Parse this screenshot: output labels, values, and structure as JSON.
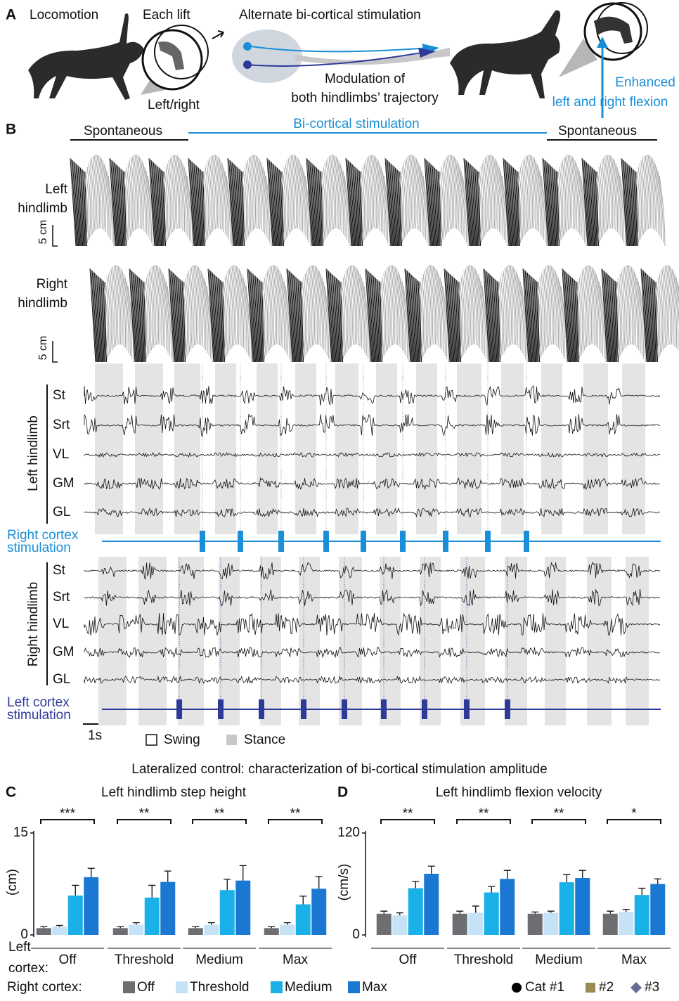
{
  "panel_a": {
    "label": "A",
    "locomotion": "Locomotion",
    "each_lift": "Each lift",
    "left_right": "Left/right",
    "alt_stim": "Alternate bi-cortical stimulation",
    "modulation": [
      "Modulation of",
      "both hindlimbs’ trajectory"
    ],
    "enhanced": [
      "Enhanced",
      "left and right flexion"
    ]
  },
  "panel_b": {
    "label": "B",
    "spontaneous": [
      "Spontaneous",
      "Spontaneous"
    ],
    "stimulation": "Bi-cortical stimulation",
    "left_hindlimb": [
      "Left",
      "hindlimb"
    ],
    "right_hindlimb": [
      "Right",
      "hindlimb"
    ],
    "scale": [
      "5 cm",
      "5 cm"
    ],
    "emg_left_title": "Left hindlimb",
    "emg_right_title": "Right hindlimb",
    "muscles_left": [
      "St",
      "Srt",
      "VL",
      "GM",
      "GL"
    ],
    "muscles_right": [
      "St",
      "Srt",
      "VL",
      "GM",
      "GL"
    ],
    "right_stim": [
      "Right cortex",
      "stimulation"
    ],
    "left_stim": [
      "Left cortex",
      "stimulation"
    ],
    "time_scale": "1s",
    "legend": [
      "Swing",
      "Stance"
    ]
  },
  "section_title": "Lateralized control: characterization of bi-cortical stimulation amplitude",
  "left_cortex_label": [
    "Left",
    "cortex:"
  ],
  "right_cortex_label": "Right cortex:",
  "animal_legend": [
    {
      "name": "Cat #1",
      "color": "#000000",
      "marker": "circle"
    },
    {
      "name": "#2",
      "color": "#9c8a55",
      "marker": "square"
    },
    {
      "name": "#3",
      "color": "#6a6a96",
      "marker": "diamond"
    }
  ],
  "chart_data": [
    {
      "type": "bar",
      "label": "C",
      "title": "Left hindlimb step height",
      "ylabel": "(cm)",
      "categories": [
        "Off",
        "Threshold",
        "Medium",
        "Max"
      ],
      "series": [
        {
          "name": "Off",
          "color": "#6d6e71",
          "values": [
            1.0,
            1.0,
            1.0,
            1.0
          ],
          "errors": [
            0.2,
            0.2,
            0.2,
            0.2
          ]
        },
        {
          "name": "Threshold",
          "color": "#c6e2f7",
          "values": [
            1.2,
            1.5,
            1.5,
            1.5
          ],
          "errors": [
            0.2,
            0.3,
            0.3,
            0.3
          ]
        },
        {
          "name": "Medium",
          "color": "#1ab0e8",
          "values": [
            5.8,
            5.5,
            6.6,
            4.5
          ],
          "errors": [
            1.5,
            1.8,
            1.6,
            1.2
          ]
        },
        {
          "name": "Max",
          "color": "#1a78d2",
          "values": [
            8.5,
            7.8,
            8.0,
            6.8
          ],
          "errors": [
            1.3,
            1.6,
            2.2,
            1.8
          ]
        }
      ],
      "ylim": [
        0,
        15
      ],
      "yticks": [
        0,
        15
      ],
      "significance": [
        "***",
        "**",
        "**",
        "**"
      ]
    },
    {
      "type": "bar",
      "label": "D",
      "title": "Left hindlimb flexion velocity",
      "ylabel": "(cm/s)",
      "categories": [
        "Off",
        "Threshold",
        "Medium",
        "Max"
      ],
      "series": [
        {
          "name": "Off",
          "color": "#6d6e71",
          "values": [
            25,
            25,
            25,
            25
          ],
          "errors": [
            3,
            3,
            2,
            3
          ]
        },
        {
          "name": "Threshold",
          "color": "#c6e2f7",
          "values": [
            23,
            26,
            26,
            27
          ],
          "errors": [
            3,
            8,
            2,
            3
          ]
        },
        {
          "name": "Medium",
          "color": "#1ab0e8",
          "values": [
            55,
            50,
            62,
            47
          ],
          "errors": [
            8,
            7,
            9,
            8
          ]
        },
        {
          "name": "Max",
          "color": "#1a78d2",
          "values": [
            72,
            66,
            67,
            60
          ],
          "errors": [
            9,
            10,
            9,
            6
          ]
        }
      ],
      "ylim": [
        0,
        120
      ],
      "yticks": [
        0,
        120
      ],
      "significance": [
        "**",
        "**",
        "**",
        "*"
      ]
    }
  ]
}
